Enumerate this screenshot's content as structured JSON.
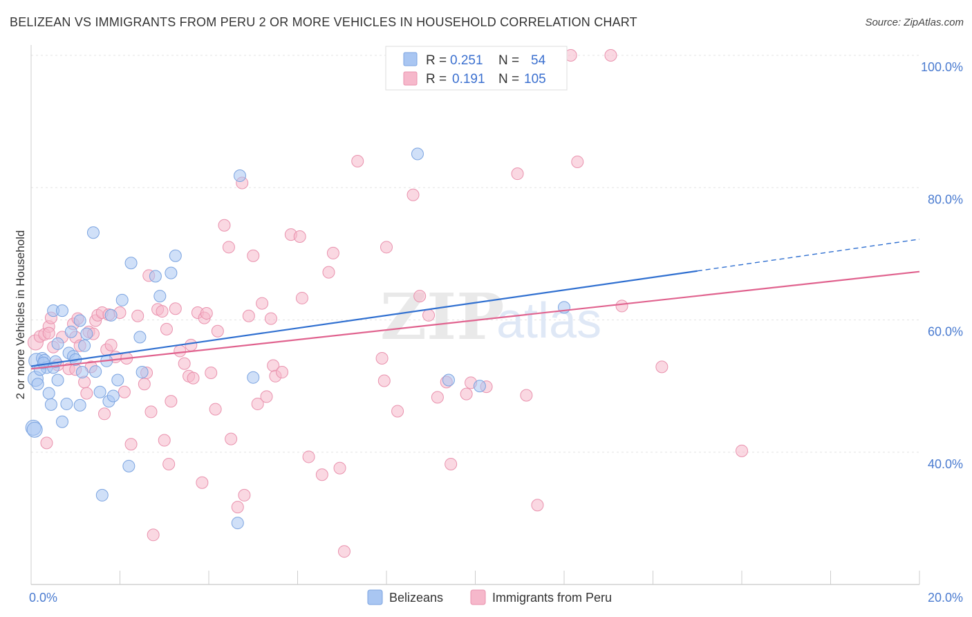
{
  "title": "BELIZEAN VS IMMIGRANTS FROM PERU 2 OR MORE VEHICLES IN HOUSEHOLD CORRELATION CHART",
  "source": "Source: ZipAtlas.com",
  "watermark": {
    "zip": "ZIP",
    "atlas": "atlas"
  },
  "legend_top": {
    "rows": [
      {
        "r_label": "R =",
        "r_value": "0.251",
        "n_label": "N =",
        "n_value": "54"
      },
      {
        "r_label": "R =",
        "r_value": "0.191",
        "n_label": "N =",
        "n_value": "105"
      }
    ]
  },
  "colors": {
    "blue_fill": "#a9c6f2",
    "blue_stroke": "#7aa3e0",
    "blue_line": "#2f6fd0",
    "pink_fill": "#f6b8cb",
    "pink_stroke": "#e991ad",
    "pink_line": "#e0628e",
    "axis_text": "#4a7bd0",
    "grid": "#e3e3e3"
  },
  "chart_data": {
    "type": "scatter",
    "ylabel": "2 or more Vehicles in Household",
    "xlim": [
      0,
      20
    ],
    "ylim": [
      20,
      100
    ],
    "x_tick_labels": [
      {
        "value": 0,
        "label": "0.0%"
      },
      {
        "value": 20,
        "label": "20.0%"
      }
    ],
    "y_tick_labels": [
      {
        "value": 40,
        "label": "40.0%"
      },
      {
        "value": 60,
        "label": "60.0%"
      },
      {
        "value": 80,
        "label": "80.0%"
      },
      {
        "value": 100,
        "label": "100.0%"
      }
    ],
    "grid": true,
    "legend_position": "bottom",
    "series": [
      {
        "name": "Belizeans",
        "color": "#a9c6f2",
        "trend": {
          "x": [
            0,
            15
          ],
          "y": [
            53.0,
            67.4
          ],
          "dashed_to": {
            "x": 20,
            "y": 72.2
          }
        },
        "points": [
          [
            0.05,
            43.7
          ],
          [
            0.1,
            51.1
          ],
          [
            0.12,
            53.8
          ],
          [
            0.15,
            50.3
          ],
          [
            0.25,
            54.2
          ],
          [
            0.3,
            53.9
          ],
          [
            0.35,
            52.8
          ],
          [
            0.4,
            48.9
          ],
          [
            0.45,
            47.2
          ],
          [
            0.5,
            52.8
          ],
          [
            0.5,
            61.4
          ],
          [
            0.55,
            53.7
          ],
          [
            0.6,
            56.4
          ],
          [
            0.6,
            50.9
          ],
          [
            0.7,
            61.4
          ],
          [
            0.7,
            44.6
          ],
          [
            0.8,
            47.3
          ],
          [
            0.85,
            55.0
          ],
          [
            0.9,
            58.2
          ],
          [
            0.95,
            54.5
          ],
          [
            1.0,
            54.0
          ],
          [
            1.1,
            47.1
          ],
          [
            1.1,
            59.9
          ],
          [
            1.15,
            52.1
          ],
          [
            1.2,
            56.1
          ],
          [
            1.25,
            57.9
          ],
          [
            1.4,
            73.2
          ],
          [
            1.45,
            52.2
          ],
          [
            1.55,
            49.1
          ],
          [
            1.6,
            33.5
          ],
          [
            1.7,
            53.8
          ],
          [
            1.75,
            47.7
          ],
          [
            1.8,
            60.7
          ],
          [
            1.85,
            48.5
          ],
          [
            1.95,
            50.9
          ],
          [
            2.05,
            63.0
          ],
          [
            2.2,
            37.9
          ],
          [
            2.25,
            68.6
          ],
          [
            2.45,
            57.4
          ],
          [
            2.5,
            52.1
          ],
          [
            2.8,
            66.6
          ],
          [
            2.9,
            63.6
          ],
          [
            3.15,
            67.1
          ],
          [
            3.25,
            69.7
          ],
          [
            4.65,
            29.3
          ],
          [
            4.7,
            81.8
          ],
          [
            5.0,
            51.3
          ],
          [
            8.7,
            85.1
          ],
          [
            9.4,
            50.9
          ],
          [
            10.1,
            50.0
          ],
          [
            12.0,
            61.9
          ],
          [
            0.08,
            43.4
          ],
          [
            0.2,
            52.5
          ],
          [
            0.28,
            53.5
          ]
        ]
      },
      {
        "name": "Immigrants from Peru",
        "color": "#f6b8cb",
        "trend": {
          "x": [
            0,
            20
          ],
          "y": [
            52.6,
            67.3
          ]
        },
        "points": [
          [
            0.1,
            56.6
          ],
          [
            0.2,
            57.5
          ],
          [
            0.3,
            57.8
          ],
          [
            0.35,
            41.4
          ],
          [
            0.4,
            59.0
          ],
          [
            0.45,
            60.3
          ],
          [
            0.5,
            55.9
          ],
          [
            0.6,
            53.2
          ],
          [
            0.7,
            57.4
          ],
          [
            0.85,
            52.6
          ],
          [
            0.95,
            59.4
          ],
          [
            1.0,
            57.4
          ],
          [
            1.05,
            60.2
          ],
          [
            1.1,
            56.1
          ],
          [
            1.2,
            50.6
          ],
          [
            1.25,
            48.9
          ],
          [
            1.3,
            58.2
          ],
          [
            1.35,
            52.9
          ],
          [
            1.4,
            57.9
          ],
          [
            1.45,
            59.9
          ],
          [
            1.5,
            60.7
          ],
          [
            1.6,
            61.1
          ],
          [
            1.65,
            45.8
          ],
          [
            1.7,
            55.5
          ],
          [
            1.75,
            60.8
          ],
          [
            1.8,
            56.2
          ],
          [
            1.9,
            54.4
          ],
          [
            2.0,
            61.1
          ],
          [
            2.1,
            49.1
          ],
          [
            2.15,
            54.2
          ],
          [
            2.25,
            41.2
          ],
          [
            2.4,
            60.6
          ],
          [
            2.55,
            50.3
          ],
          [
            2.6,
            52.0
          ],
          [
            2.65,
            66.7
          ],
          [
            2.7,
            46.1
          ],
          [
            2.75,
            27.5
          ],
          [
            2.85,
            61.6
          ],
          [
            2.95,
            61.3
          ],
          [
            3.0,
            41.8
          ],
          [
            3.05,
            58.6
          ],
          [
            3.1,
            38.2
          ],
          [
            3.15,
            47.7
          ],
          [
            3.25,
            61.7
          ],
          [
            3.35,
            55.3
          ],
          [
            3.45,
            53.4
          ],
          [
            3.55,
            51.5
          ],
          [
            3.65,
            51.2
          ],
          [
            3.75,
            61.1
          ],
          [
            3.85,
            35.4
          ],
          [
            3.9,
            60.3
          ],
          [
            3.95,
            61.0
          ],
          [
            4.05,
            52.0
          ],
          [
            4.15,
            46.5
          ],
          [
            4.2,
            58.3
          ],
          [
            4.35,
            74.3
          ],
          [
            4.45,
            71.0
          ],
          [
            4.5,
            42.0
          ],
          [
            4.65,
            31.7
          ],
          [
            4.75,
            80.7
          ],
          [
            4.8,
            33.5
          ],
          [
            4.9,
            60.6
          ],
          [
            5.0,
            69.7
          ],
          [
            5.1,
            47.3
          ],
          [
            5.2,
            62.5
          ],
          [
            5.3,
            48.4
          ],
          [
            5.4,
            60.2
          ],
          [
            5.45,
            53.1
          ],
          [
            5.5,
            51.5
          ],
          [
            5.65,
            52.1
          ],
          [
            5.85,
            72.9
          ],
          [
            6.05,
            72.6
          ],
          [
            6.1,
            63.3
          ],
          [
            6.25,
            39.3
          ],
          [
            6.55,
            36.6
          ],
          [
            6.7,
            67.2
          ],
          [
            6.8,
            70.1
          ],
          [
            6.95,
            37.6
          ],
          [
            7.05,
            25.0
          ],
          [
            7.35,
            84.0
          ],
          [
            7.9,
            54.2
          ],
          [
            7.95,
            50.8
          ],
          [
            8.0,
            71.0
          ],
          [
            8.25,
            46.2
          ],
          [
            8.6,
            78.9
          ],
          [
            8.75,
            63.6
          ],
          [
            8.95,
            60.7
          ],
          [
            9.15,
            48.3
          ],
          [
            9.35,
            50.6
          ],
          [
            9.45,
            38.2
          ],
          [
            9.8,
            48.8
          ],
          [
            9.9,
            50.5
          ],
          [
            10.25,
            49.9
          ],
          [
            10.95,
            82.1
          ],
          [
            11.15,
            48.6
          ],
          [
            11.4,
            32.0
          ],
          [
            12.15,
            100.0
          ],
          [
            12.3,
            83.9
          ],
          [
            13.05,
            100.0
          ],
          [
            13.3,
            62.1
          ],
          [
            14.2,
            52.9
          ],
          [
            16.0,
            40.2
          ],
          [
            1.0,
            52.5
          ],
          [
            3.6,
            56.2
          ],
          [
            0.4,
            58.0
          ]
        ]
      }
    ]
  }
}
